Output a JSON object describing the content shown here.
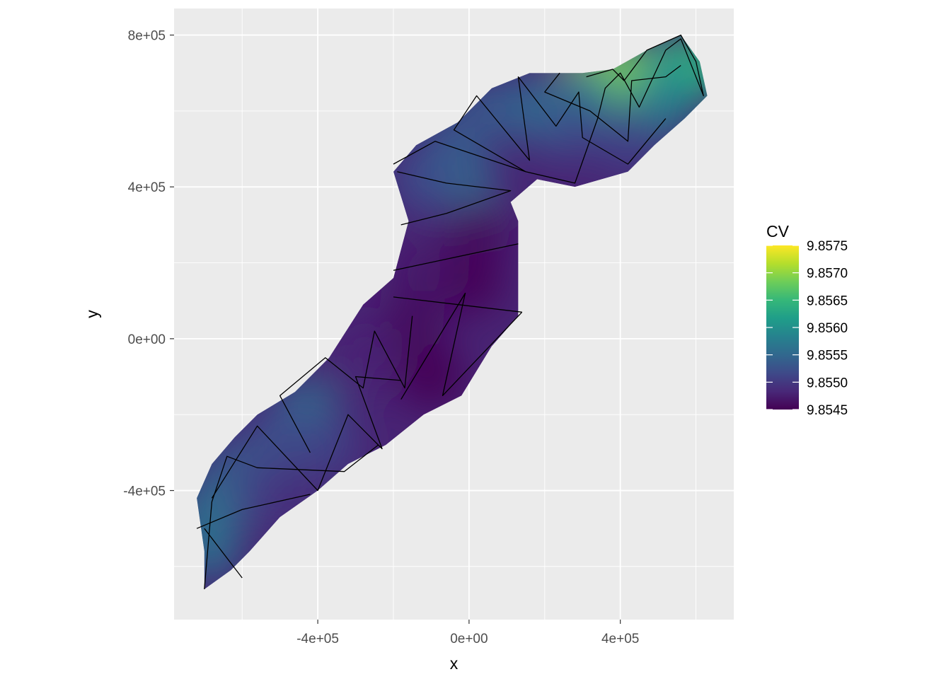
{
  "chart_data": {
    "type": "heatmap",
    "xlabel": "x",
    "ylabel": "y",
    "xlim": [
      -780000,
      700000
    ],
    "ylim": [
      -740000,
      870000
    ],
    "x_ticks": [
      {
        "value": -400000,
        "label": "-4e+05"
      },
      {
        "value": 0,
        "label": "0e+00"
      },
      {
        "value": 400000,
        "label": "4e+05"
      }
    ],
    "y_ticks": [
      {
        "value": -400000,
        "label": "-4e+05"
      },
      {
        "value": 0,
        "label": "0e+00"
      },
      {
        "value": 400000,
        "label": "4e+05"
      },
      {
        "value": 800000,
        "label": "8e+05"
      }
    ],
    "grid": true,
    "panel_background": "#EBEBEB",
    "legend": {
      "title": "CV",
      "placement": "right",
      "min": 9.8545,
      "max": 9.8575,
      "breaks": [
        {
          "value": 9.8545,
          "label": "9.8545"
        },
        {
          "value": 9.855,
          "label": "9.8550"
        },
        {
          "value": 9.8555,
          "label": "9.8555"
        },
        {
          "value": 9.856,
          "label": "9.8560"
        },
        {
          "value": 9.8565,
          "label": "9.8565"
        },
        {
          "value": 9.857,
          "label": "9.8570"
        },
        {
          "value": 9.8575,
          "label": "9.8575"
        }
      ],
      "colors": [
        "#440154",
        "#482878",
        "#3E4A89",
        "#31688E",
        "#26828E",
        "#1F9E89",
        "#35B779",
        "#6DCD59",
        "#B4DE2C",
        "#FDE725"
      ]
    },
    "region_outline": [
      [
        -700000,
        -660000
      ],
      [
        -630000,
        -610000
      ],
      [
        -580000,
        -560000
      ],
      [
        -500000,
        -470000
      ],
      [
        -400000,
        -400000
      ],
      [
        -320000,
        -330000
      ],
      [
        -220000,
        -280000
      ],
      [
        -120000,
        -200000
      ],
      [
        -20000,
        -150000
      ],
      [
        60000,
        -20000
      ],
      [
        130000,
        60000
      ],
      [
        130000,
        310000
      ],
      [
        110000,
        360000
      ],
      [
        180000,
        420000
      ],
      [
        280000,
        400000
      ],
      [
        420000,
        440000
      ],
      [
        490000,
        510000
      ],
      [
        570000,
        580000
      ],
      [
        630000,
        640000
      ],
      [
        610000,
        730000
      ],
      [
        560000,
        800000
      ],
      [
        470000,
        760000
      ],
      [
        380000,
        710000
      ],
      [
        300000,
        700000
      ],
      [
        160000,
        700000
      ],
      [
        60000,
        660000
      ],
      [
        -30000,
        570000
      ],
      [
        -140000,
        510000
      ],
      [
        -200000,
        440000
      ],
      [
        -160000,
        310000
      ],
      [
        -200000,
        160000
      ],
      [
        -280000,
        90000
      ],
      [
        -370000,
        -50000
      ],
      [
        -460000,
        -140000
      ],
      [
        -560000,
        -200000
      ],
      [
        -620000,
        -260000
      ],
      [
        -680000,
        -330000
      ],
      [
        -720000,
        -420000
      ],
      [
        -700000,
        -560000
      ]
    ],
    "cv_field": [
      {
        "x": 560000,
        "y": 720000,
        "cv": 9.8568
      },
      {
        "x": 600000,
        "y": 710000,
        "cv": 9.8565
      },
      {
        "x": 530000,
        "y": 690000,
        "cv": 9.8562
      },
      {
        "x": 450000,
        "y": 700000,
        "cv": 9.8561
      },
      {
        "x": 400000,
        "y": 660000,
        "cv": 9.8559
      },
      {
        "x": 320000,
        "y": 690000,
        "cv": 9.8572
      },
      {
        "x": 380000,
        "y": 700000,
        "cv": 9.8569
      },
      {
        "x": 300000,
        "y": 640000,
        "cv": 9.8557
      },
      {
        "x": 500000,
        "y": 610000,
        "cv": 9.8558
      },
      {
        "x": 420000,
        "y": 520000,
        "cv": 9.8551
      },
      {
        "x": 250000,
        "y": 560000,
        "cv": 9.8552
      },
      {
        "x": 150000,
        "y": 610000,
        "cv": 9.8555
      },
      {
        "x": 50000,
        "y": 600000,
        "cv": 9.8553
      },
      {
        "x": -50000,
        "y": 510000,
        "cv": 9.8553
      },
      {
        "x": -10000,
        "y": 400000,
        "cv": 9.8555
      },
      {
        "x": -120000,
        "y": 420000,
        "cv": 9.8552
      },
      {
        "x": 20000,
        "y": 280000,
        "cv": 9.8546
      },
      {
        "x": 0,
        "y": 150000,
        "cv": 9.8545
      },
      {
        "x": -120000,
        "y": 180000,
        "cv": 9.8547
      },
      {
        "x": -150000,
        "y": 40000,
        "cv": 9.8546
      },
      {
        "x": -280000,
        "y": -50000,
        "cv": 9.8548
      },
      {
        "x": -100000,
        "y": -100000,
        "cv": 9.8545
      },
      {
        "x": -430000,
        "y": -190000,
        "cv": 9.8556
      },
      {
        "x": -380000,
        "y": -280000,
        "cv": 9.8551
      },
      {
        "x": -500000,
        "y": -250000,
        "cv": 9.8552
      },
      {
        "x": -620000,
        "y": -350000,
        "cv": 9.8554
      },
      {
        "x": -680000,
        "y": -450000,
        "cv": 9.8556
      },
      {
        "x": -690000,
        "y": -550000,
        "cv": 9.8556
      },
      {
        "x": -550000,
        "y": -400000,
        "cv": 9.8551
      },
      {
        "x": -450000,
        "y": -420000,
        "cv": 9.8549
      }
    ],
    "transects": [
      [
        [
          -700000,
          -660000
        ],
        [
          -680000,
          -430000
        ],
        [
          -640000,
          -310000
        ],
        [
          -560000,
          -340000
        ],
        [
          -330000,
          -350000
        ],
        [
          -240000,
          -280000
        ]
      ],
      [
        [
          -680000,
          -420000
        ],
        [
          -560000,
          -230000
        ],
        [
          -400000,
          -400000
        ],
        [
          -320000,
          -200000
        ],
        [
          -230000,
          -290000
        ],
        [
          -300000,
          -100000
        ],
        [
          -180000,
          -110000
        ]
      ],
      [
        [
          -720000,
          -500000
        ],
        [
          -600000,
          -450000
        ],
        [
          -420000,
          -410000
        ]
      ],
      [
        [
          -600000,
          -630000
        ],
        [
          -700000,
          -500000
        ]
      ],
      [
        [
          -420000,
          -300000
        ],
        [
          -500000,
          -150000
        ],
        [
          -380000,
          -50000
        ],
        [
          -280000,
          -130000
        ],
        [
          -250000,
          20000
        ],
        [
          -170000,
          -130000
        ],
        [
          -150000,
          60000
        ]
      ],
      [
        [
          -180000,
          -160000
        ],
        [
          -10000,
          120000
        ],
        [
          -70000,
          -150000
        ],
        [
          140000,
          70000
        ]
      ],
      [
        [
          -200000,
          110000
        ],
        [
          140000,
          70000
        ]
      ],
      [
        [
          -200000,
          180000
        ],
        [
          130000,
          250000
        ]
      ],
      [
        [
          -180000,
          300000
        ],
        [
          -60000,
          330000
        ],
        [
          110000,
          390000
        ],
        [
          -60000,
          410000
        ],
        [
          -190000,
          440000
        ]
      ],
      [
        [
          -200000,
          460000
        ],
        [
          -90000,
          520000
        ],
        [
          150000,
          440000
        ],
        [
          -40000,
          550000
        ],
        [
          20000,
          640000
        ],
        [
          160000,
          470000
        ],
        [
          130000,
          690000
        ],
        [
          230000,
          560000
        ],
        [
          290000,
          650000
        ],
        [
          300000,
          530000
        ],
        [
          420000,
          460000
        ],
        [
          520000,
          580000
        ]
      ],
      [
        [
          150000,
          440000
        ],
        [
          280000,
          410000
        ],
        [
          340000,
          580000
        ],
        [
          360000,
          660000
        ],
        [
          400000,
          700000
        ],
        [
          450000,
          610000
        ],
        [
          520000,
          760000
        ],
        [
          560000,
          790000
        ],
        [
          620000,
          640000
        ],
        [
          600000,
          730000
        ],
        [
          560000,
          800000
        ],
        [
          470000,
          760000
        ],
        [
          410000,
          680000
        ],
        [
          380000,
          710000
        ],
        [
          310000,
          690000
        ]
      ],
      [
        [
          240000,
          700000
        ],
        [
          200000,
          650000
        ],
        [
          320000,
          600000
        ],
        [
          420000,
          520000
        ],
        [
          430000,
          680000
        ],
        [
          520000,
          690000
        ],
        [
          560000,
          720000
        ]
      ]
    ]
  }
}
